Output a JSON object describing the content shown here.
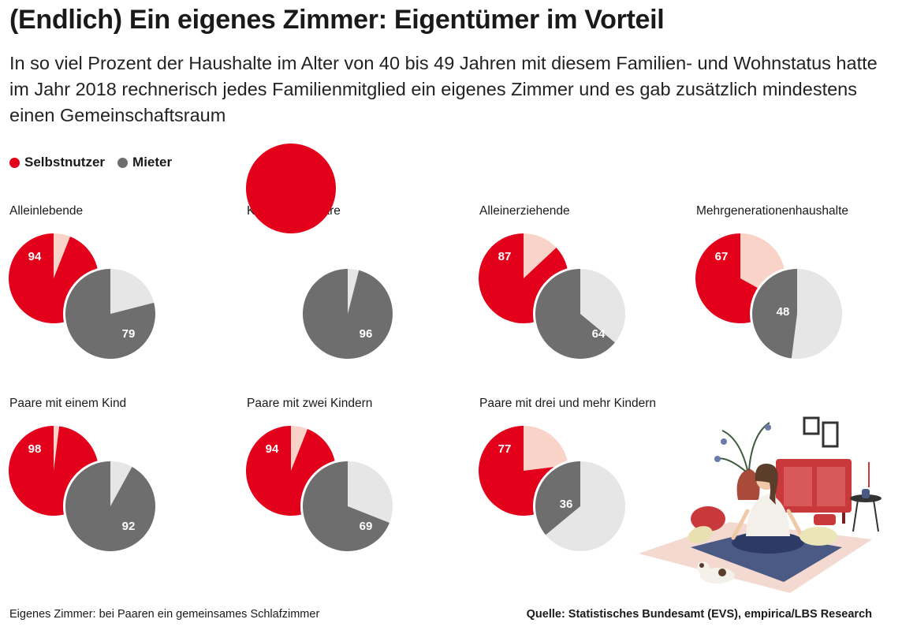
{
  "title": "(Endlich) Ein eigenes Zimmer: Eigentümer im Vorteil",
  "subtitle": "In so viel Prozent der Haushalte im Alter von 40 bis 49 Jahren mit diesem Familien- und Wohnstatus hatte im Jahr 2018 rechnerisch jedes Familienmitglied ein eigenes Zimmer und es gab zusätzlich mindestens einen Gemeinschaftsraum",
  "legend": {
    "owner_label": "Selbstnutzer",
    "renter_label": "Mieter"
  },
  "colors": {
    "owner": "#e2001a",
    "owner_rest": "#f9d3c8",
    "renter": "#6e6e6e",
    "renter_rest": "#e6e6e6"
  },
  "footnote": "Eigenes Zimmer: bei Paaren ein gemeinsames Schlafzimmer",
  "source": "Quelle: Statistisches Bundesamt (EVS), empirica/LBS Research",
  "chart_data": {
    "type": "pie",
    "unit": "%",
    "series_names": [
      "Selbstnutzer",
      "Mieter"
    ],
    "panels": [
      {
        "label": "Alleinlebende",
        "Selbstnutzer": 94,
        "Mieter": 79
      },
      {
        "label": "Kinderlose Paare",
        "Selbstnutzer": 100,
        "Mieter": 96
      },
      {
        "label": "Alleinerziehende",
        "Selbstnutzer": 87,
        "Mieter": 64
      },
      {
        "label": "Mehrgenerationenhaushalte",
        "Selbstnutzer": 67,
        "Mieter": 48
      },
      {
        "label": "Paare mit einem Kind",
        "Selbstnutzer": 98,
        "Mieter": 92
      },
      {
        "label": "Paare mit zwei Kindern",
        "Selbstnutzer": 94,
        "Mieter": 69
      },
      {
        "label": "Paare mit drei und mehr Kindern",
        "Selbstnutzer": 77,
        "Mieter": 36
      }
    ]
  }
}
